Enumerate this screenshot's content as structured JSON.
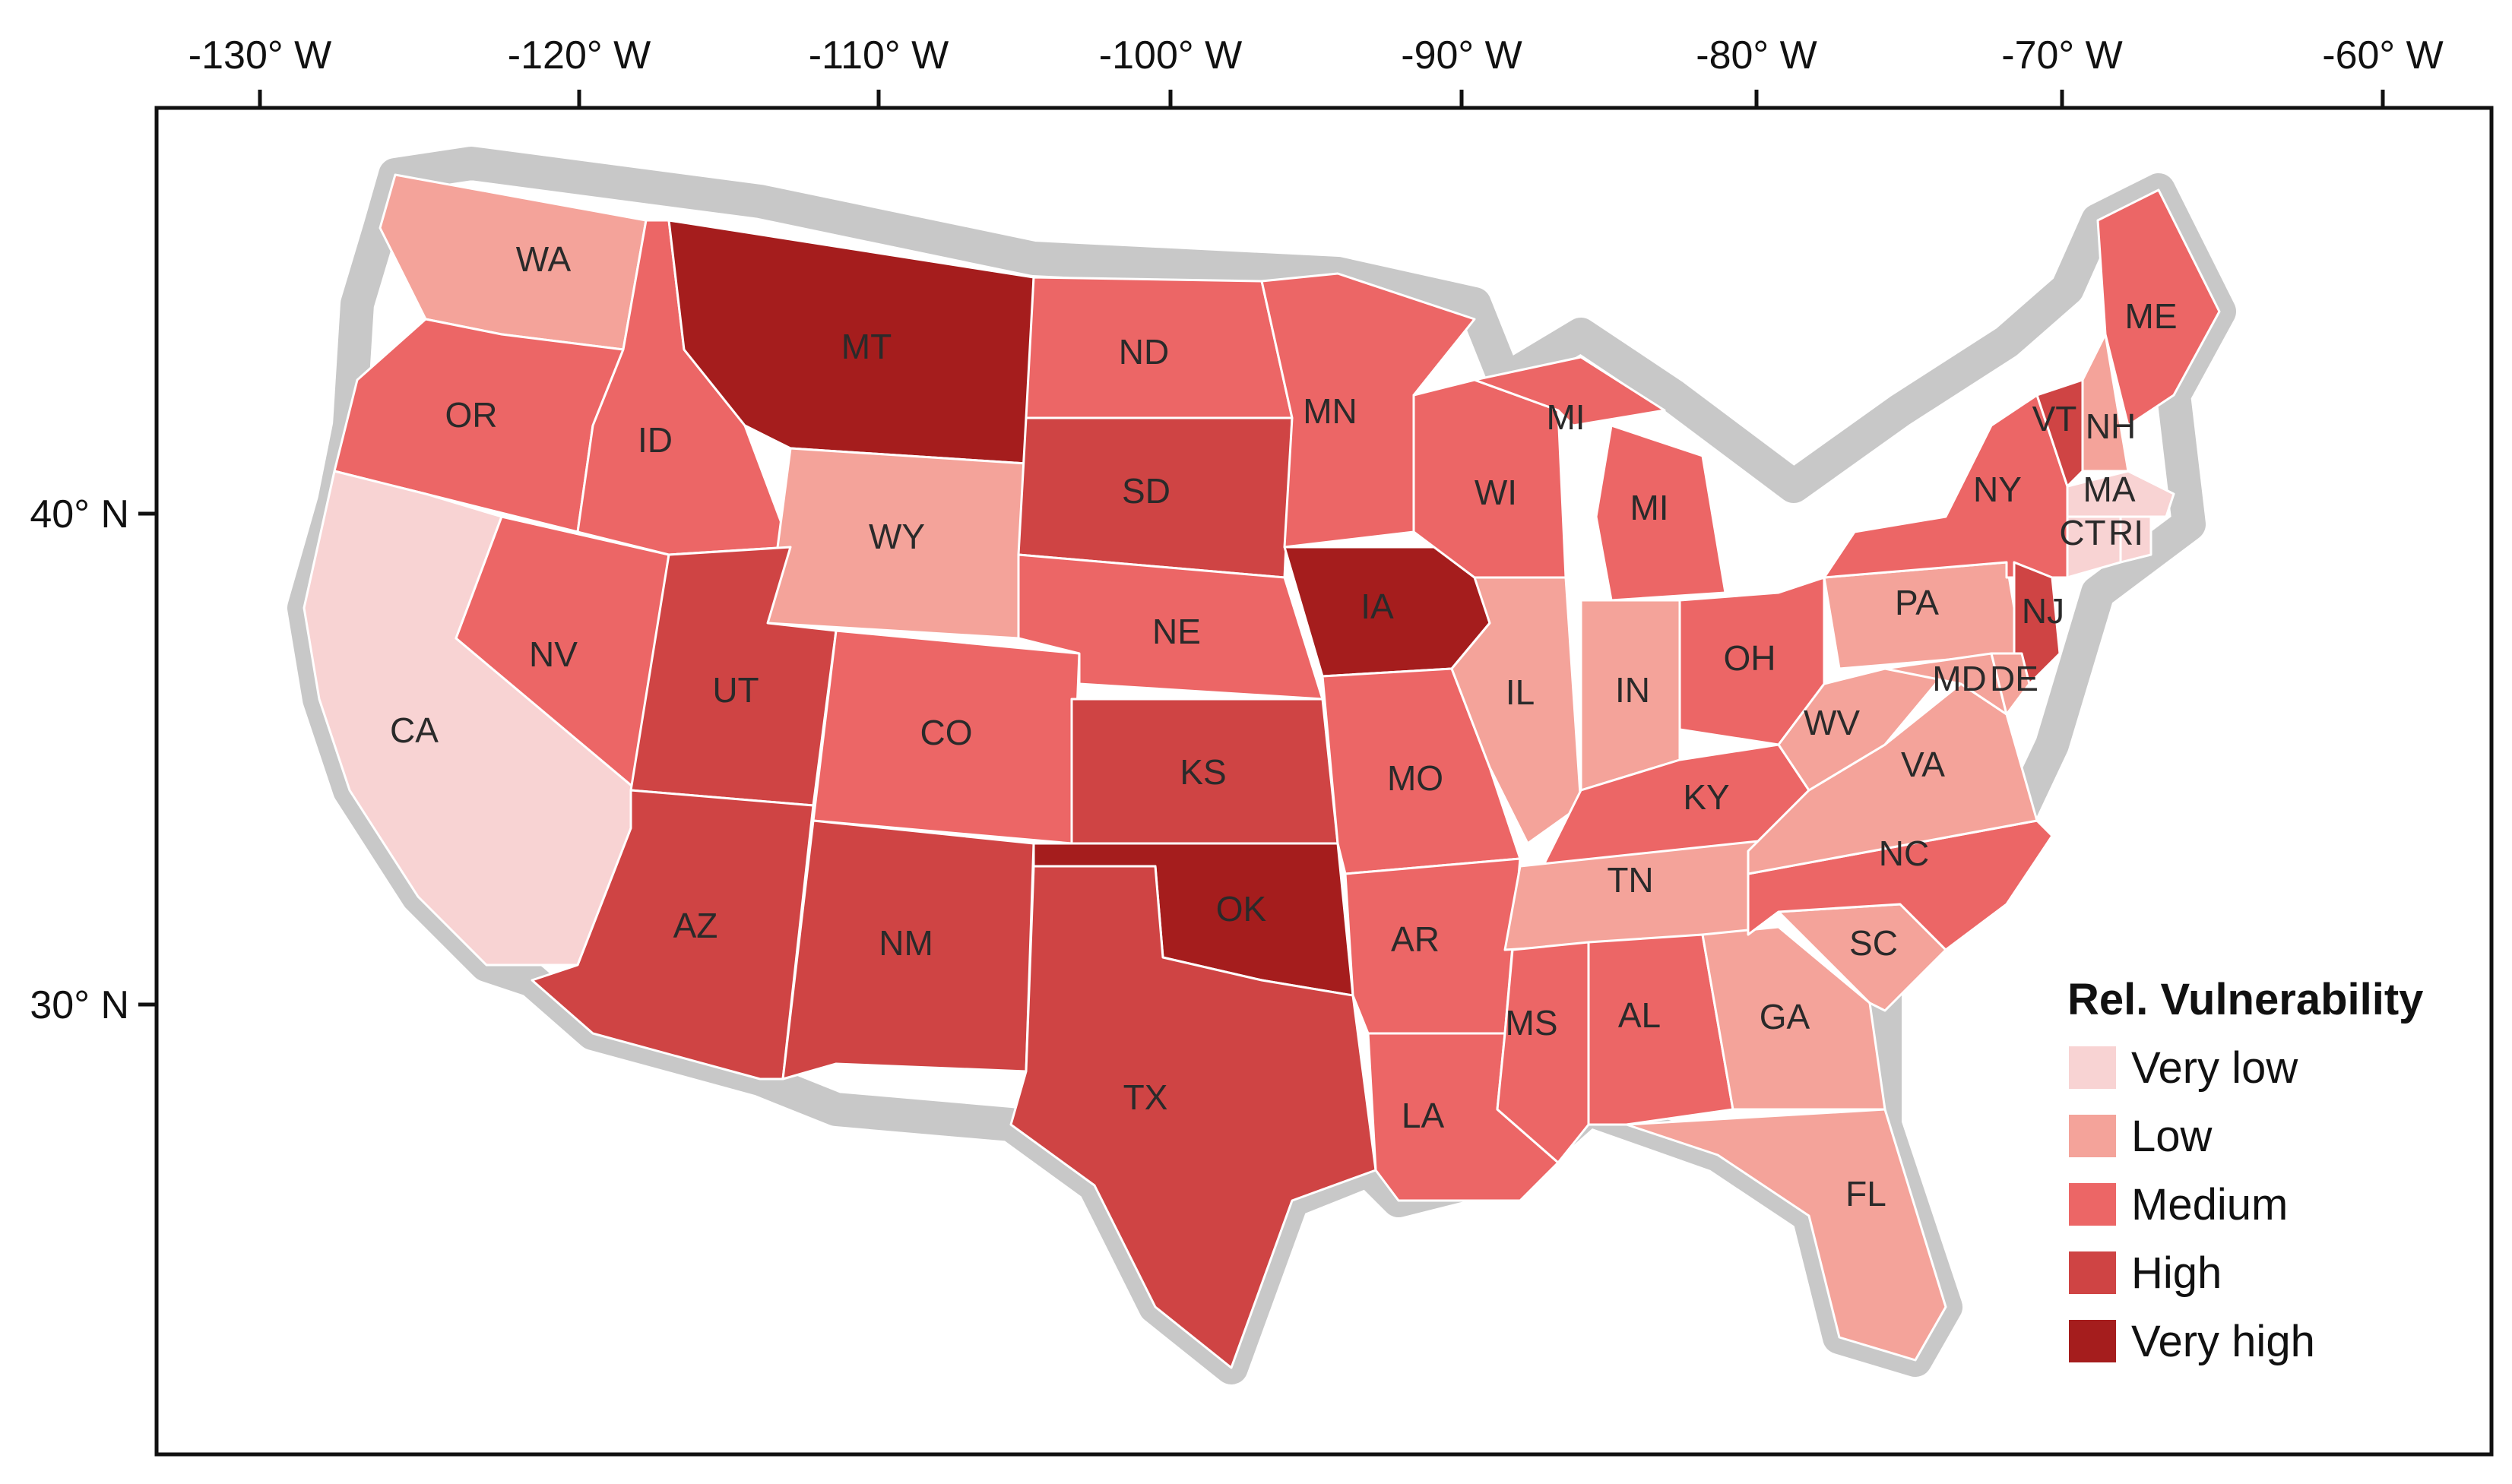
{
  "map": {
    "lon_ticks": [
      "-130° W",
      "-120° W",
      "-110° W",
      "-100° W",
      "-90° W",
      "-80° W",
      "-70° W",
      "-60° W"
    ],
    "lat_ticks": [
      "40° N",
      "30° N"
    ],
    "colors": {
      "Very low": "#f8d3d3",
      "Low": "#f4a39a",
      "Medium": "#ec6666",
      "High": "#cf4444",
      "Very high": "#a51d1d",
      "buffer": "#c8c8c8"
    },
    "legend": {
      "title": "Rel. Vulnerability",
      "classes": [
        "Very low",
        "Low",
        "Medium",
        "High",
        "Very high"
      ]
    },
    "states": [
      {
        "abbr": "WA",
        "class": "Low"
      },
      {
        "abbr": "OR",
        "class": "Medium"
      },
      {
        "abbr": "CA",
        "class": "Very low"
      },
      {
        "abbr": "NV",
        "class": "Medium"
      },
      {
        "abbr": "ID",
        "class": "Medium"
      },
      {
        "abbr": "MT",
        "class": "Very high"
      },
      {
        "abbr": "WY",
        "class": "Low"
      },
      {
        "abbr": "UT",
        "class": "High"
      },
      {
        "abbr": "AZ",
        "class": "High"
      },
      {
        "abbr": "CO",
        "class": "Medium"
      },
      {
        "abbr": "NM",
        "class": "High"
      },
      {
        "abbr": "ND",
        "class": "Medium"
      },
      {
        "abbr": "SD",
        "class": "High"
      },
      {
        "abbr": "NE",
        "class": "Medium"
      },
      {
        "abbr": "KS",
        "class": "High"
      },
      {
        "abbr": "OK",
        "class": "Very high"
      },
      {
        "abbr": "TX",
        "class": "High"
      },
      {
        "abbr": "MN",
        "class": "Medium"
      },
      {
        "abbr": "IA",
        "class": "Very high"
      },
      {
        "abbr": "MO",
        "class": "Medium"
      },
      {
        "abbr": "AR",
        "class": "Medium"
      },
      {
        "abbr": "LA",
        "class": "Medium"
      },
      {
        "abbr": "WI",
        "class": "Medium"
      },
      {
        "abbr": "IL",
        "class": "Low"
      },
      {
        "abbr": "MI",
        "class": "Medium"
      },
      {
        "abbr": "MI",
        "class": "Medium"
      },
      {
        "abbr": "IN",
        "class": "Low"
      },
      {
        "abbr": "OH",
        "class": "Medium"
      },
      {
        "abbr": "KY",
        "class": "Medium"
      },
      {
        "abbr": "TN",
        "class": "Low"
      },
      {
        "abbr": "MS",
        "class": "Medium"
      },
      {
        "abbr": "AL",
        "class": "Medium"
      },
      {
        "abbr": "GA",
        "class": "Low"
      },
      {
        "abbr": "FL",
        "class": "Low"
      },
      {
        "abbr": "SC",
        "class": "Low"
      },
      {
        "abbr": "NC",
        "class": "Medium"
      },
      {
        "abbr": "VA",
        "class": "Low"
      },
      {
        "abbr": "WV",
        "class": "Low"
      },
      {
        "abbr": "PA",
        "class": "Low"
      },
      {
        "abbr": "NY",
        "class": "Medium"
      },
      {
        "abbr": "VT",
        "class": "High"
      },
      {
        "abbr": "NH",
        "class": "Low"
      },
      {
        "abbr": "ME",
        "class": "Medium"
      },
      {
        "abbr": "MA",
        "class": "Very low"
      },
      {
        "abbr": "CT",
        "class": "Very low"
      },
      {
        "abbr": "RI",
        "class": "Very low"
      },
      {
        "abbr": "NJ",
        "class": "High"
      },
      {
        "abbr": "MD",
        "class": "Low"
      },
      {
        "abbr": "DE",
        "class": "Low"
      }
    ]
  }
}
